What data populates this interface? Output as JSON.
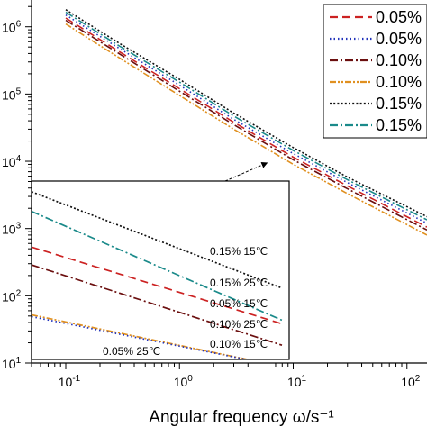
{
  "chart_data": {
    "type": "line",
    "xlabel": "Angular frequency ω/s⁻¹",
    "x_scale": "log",
    "y_scale": "log",
    "xlim": [
      0.05,
      150
    ],
    "ylim": [
      10,
      2500000
    ],
    "x_ticks": [
      {
        "value": 0.1,
        "label_base": "10",
        "label_exp": "-1"
      },
      {
        "value": 1,
        "label_base": "10",
        "label_exp": "0"
      },
      {
        "value": 10,
        "label_base": "10",
        "label_exp": "1"
      },
      {
        "value": 100,
        "label_base": "10",
        "label_exp": "2"
      }
    ],
    "y_ticks": [
      {
        "value": 10,
        "label_base": "10",
        "label_exp": "1"
      },
      {
        "value": 100,
        "label_base": "10",
        "label_exp": "2"
      },
      {
        "value": 1000,
        "label_base": "10",
        "label_exp": "3"
      },
      {
        "value": 10000,
        "label_base": "10",
        "label_exp": "4"
      },
      {
        "value": 100000,
        "label_base": "10",
        "label_exp": "5"
      },
      {
        "value": 1000000,
        "label_base": "10",
        "label_exp": "6"
      }
    ],
    "legend_position": "top-right",
    "series": [
      {
        "name": "0.05%",
        "color": "#cc2222",
        "dash": "dashed",
        "x": [
          0.1,
          0.3,
          1,
          3,
          10,
          30,
          150
        ],
        "y": [
          1350000,
          420000,
          120000,
          38000,
          11500,
          4300,
          1050
        ]
      },
      {
        "name": "0.05%",
        "color": "#2233bb",
        "dash": "dotted",
        "x": [
          0.1,
          0.3,
          1,
          3,
          10,
          30,
          150
        ],
        "y": [
          1500000,
          470000,
          135000,
          42000,
          13000,
          4800,
          1200
        ]
      },
      {
        "name": "0.10%",
        "color": "#6b0f0f",
        "dash": "dash-dot",
        "x": [
          0.1,
          0.3,
          1,
          3,
          10,
          30,
          150
        ],
        "y": [
          1250000,
          390000,
          110000,
          35000,
          10500,
          3900,
          950
        ]
      },
      {
        "name": "0.10%",
        "color": "#e09020",
        "dash": "dash-dot-dot",
        "x": [
          0.1,
          0.3,
          1,
          3,
          10,
          30,
          150
        ],
        "y": [
          1100000,
          340000,
          95000,
          30000,
          9000,
          3300,
          800
        ]
      },
      {
        "name": "0.15%",
        "color": "#111111",
        "dash": "short-dot",
        "x": [
          0.1,
          0.3,
          1,
          3,
          10,
          30,
          150
        ],
        "y": [
          1800000,
          560000,
          165000,
          52000,
          16000,
          5800,
          1500
        ]
      },
      {
        "name": "0.15%",
        "color": "#1a8a8a",
        "dash": "dash-dot",
        "x": [
          0.1,
          0.3,
          1,
          3,
          10,
          30,
          150
        ],
        "y": [
          1650000,
          510000,
          150000,
          47000,
          14500,
          5300,
          1350
        ]
      }
    ],
    "inset": {
      "series": [
        {
          "color": "#111111",
          "dash": "short-dot",
          "start": 0.06,
          "end": 0.6
        },
        {
          "color": "#1a8a8a",
          "dash": "dash-dot",
          "start": 0.17,
          "end": 0.78
        },
        {
          "color": "#cc2222",
          "dash": "dashed",
          "start": 0.37,
          "end": 0.8
        },
        {
          "color": "#6b0f0f",
          "dash": "dash-dot",
          "start": 0.47,
          "end": 0.92
        },
        {
          "color": "#e09020",
          "dash": "dash-dot-dot",
          "start": 0.75,
          "end": 1.04
        },
        {
          "color": "#2233bb",
          "dash": "dotted",
          "start": 0.76,
          "end": 1.04
        }
      ],
      "labels": [
        "0.15% 15℃",
        "0.15% 25℃",
        "0.05% 15℃",
        "0.10% 25℃",
        "0.10% 15℃",
        "0.05% 25℃"
      ]
    }
  }
}
